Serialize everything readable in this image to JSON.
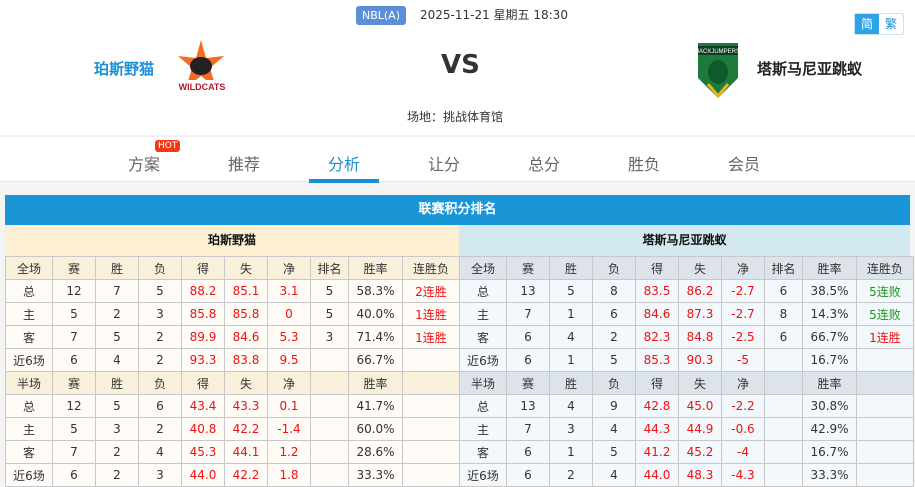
{
  "header": {
    "league": "NBL(A)",
    "datetime": "2025-11-21 星期五 18:30",
    "lang": [
      "简",
      "繁"
    ],
    "home": "珀斯野猫",
    "away": "塔斯马尼亚跳蚁",
    "vs": "VS",
    "venue": "场地：挑战体育馆"
  },
  "nav": {
    "tabs": [
      "方案",
      "推荐",
      "分析",
      "让分",
      "总分",
      "胜负",
      "会员"
    ],
    "active": 2,
    "hot": "HOT"
  },
  "colors": {
    "accent": "#1a96d6",
    "positive": "#ee1111",
    "losing_streak": "#189818"
  },
  "standings": {
    "title": "联赛积分排名",
    "home": {
      "name": "珀斯野猫",
      "rows": [
        [
          "全场",
          "赛",
          "胜",
          "负",
          "得",
          "失",
          "净",
          "排名",
          "胜率",
          "连胜负"
        ],
        [
          "总",
          "12",
          "7",
          "5",
          "88.2",
          "85.1",
          "3.1",
          "5",
          "58.3%",
          "2连胜"
        ],
        [
          "主",
          "5",
          "2",
          "3",
          "85.8",
          "85.8",
          "0",
          "5",
          "40.0%",
          "1连胜"
        ],
        [
          "客",
          "7",
          "5",
          "2",
          "89.9",
          "84.6",
          "5.3",
          "3",
          "71.4%",
          "1连胜"
        ],
        [
          "近6场",
          "6",
          "4",
          "2",
          "93.3",
          "83.8",
          "9.5",
          "",
          "66.7%",
          ""
        ],
        [
          "半场",
          "赛",
          "胜",
          "负",
          "得",
          "失",
          "净",
          "",
          "胜率",
          ""
        ],
        [
          "总",
          "12",
          "5",
          "6",
          "43.4",
          "43.3",
          "0.1",
          "",
          "41.7%",
          ""
        ],
        [
          "主",
          "5",
          "3",
          "2",
          "40.8",
          "42.2",
          "-1.4",
          "",
          "60.0%",
          ""
        ],
        [
          "客",
          "7",
          "2",
          "4",
          "45.3",
          "44.1",
          "1.2",
          "",
          "28.6%",
          ""
        ],
        [
          "近6场",
          "6",
          "2",
          "3",
          "44.0",
          "42.2",
          "1.8",
          "",
          "33.3%",
          ""
        ]
      ]
    },
    "away": {
      "name": "塔斯马尼亚跳蚁",
      "rows": [
        [
          "全场",
          "赛",
          "胜",
          "负",
          "得",
          "失",
          "净",
          "排名",
          "胜率",
          "连胜负"
        ],
        [
          "总",
          "13",
          "5",
          "8",
          "83.5",
          "86.2",
          "-2.7",
          "6",
          "38.5%",
          "5连败"
        ],
        [
          "主",
          "7",
          "1",
          "6",
          "84.6",
          "87.3",
          "-2.7",
          "8",
          "14.3%",
          "5连败"
        ],
        [
          "客",
          "6",
          "4",
          "2",
          "82.3",
          "84.8",
          "-2.5",
          "6",
          "66.7%",
          "1连胜"
        ],
        [
          "近6场",
          "6",
          "1",
          "5",
          "85.3",
          "90.3",
          "-5",
          "",
          "16.7%",
          ""
        ],
        [
          "半场",
          "赛",
          "胜",
          "负",
          "得",
          "失",
          "净",
          "",
          "胜率",
          ""
        ],
        [
          "总",
          "13",
          "4",
          "9",
          "42.8",
          "45.0",
          "-2.2",
          "",
          "30.8%",
          ""
        ],
        [
          "主",
          "7",
          "3",
          "4",
          "44.3",
          "44.9",
          "-0.6",
          "",
          "42.9%",
          ""
        ],
        [
          "客",
          "6",
          "1",
          "5",
          "41.2",
          "45.2",
          "-4",
          "",
          "16.7%",
          ""
        ],
        [
          "近6场",
          "6",
          "2",
          "4",
          "44.0",
          "48.3",
          "-4.3",
          "",
          "33.3%",
          ""
        ]
      ]
    }
  }
}
